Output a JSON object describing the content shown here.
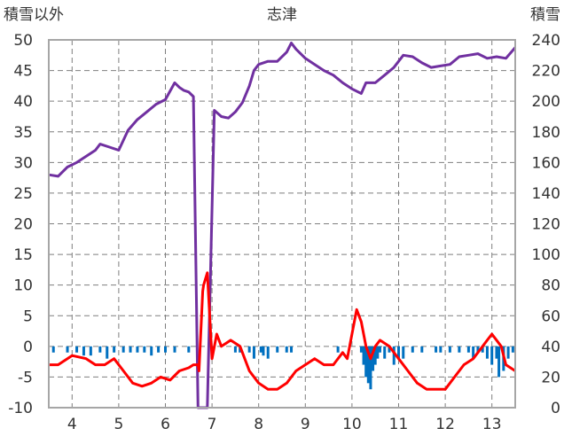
{
  "chart_data": {
    "type": "line",
    "title": "志津",
    "left_axis_label": "積雪以外",
    "right_axis_label": "積雪",
    "left_ylim": [
      -10,
      50
    ],
    "left_ticks": [
      "50",
      "45",
      "40",
      "35",
      "30",
      "25",
      "20",
      "15",
      "10",
      "5",
      "0",
      "-5",
      "-10"
    ],
    "right_ylim": [
      0,
      240
    ],
    "right_ticks": [
      "240",
      "220",
      "200",
      "180",
      "160",
      "140",
      "120",
      "100",
      "80",
      "60",
      "40",
      "20",
      "0"
    ],
    "x_ticks": [
      "4",
      "5",
      "6",
      "7",
      "8",
      "9",
      "10",
      "11",
      "12",
      "13"
    ],
    "xlim": [
      3.5,
      13.5
    ],
    "grid": true,
    "colors": {
      "snow_depth": "#7030a0",
      "temperature": "#ff0000",
      "bars": "#0070c0"
    },
    "series": [
      {
        "role": "snow_depth",
        "axis": "right",
        "x": [
          3.5,
          3.7,
          3.9,
          4.1,
          4.3,
          4.5,
          4.6,
          4.8,
          5.0,
          5.2,
          5.4,
          5.6,
          5.8,
          6.0,
          6.2,
          6.3,
          6.4,
          6.5,
          6.6,
          6.7,
          6.72,
          6.85,
          6.9,
          7.05,
          7.2,
          7.35,
          7.5,
          7.65,
          7.8,
          7.9,
          8.0,
          8.2,
          8.4,
          8.6,
          8.7,
          8.8,
          9.0,
          9.2,
          9.4,
          9.6,
          9.8,
          10.0,
          10.2,
          10.3,
          10.5,
          10.7,
          10.9,
          11.0,
          11.1,
          11.3,
          11.5,
          11.7,
          11.9,
          12.1,
          12.3,
          12.5,
          12.7,
          12.9,
          13.1,
          13.3,
          13.5
        ],
        "y": [
          152,
          151,
          157,
          160,
          164,
          168,
          172,
          170,
          168,
          181,
          188,
          193,
          198,
          201,
          212,
          209,
          207,
          206,
          203,
          0,
          0,
          0,
          0,
          194,
          190,
          189,
          193,
          199,
          210,
          220,
          224,
          226,
          226,
          232,
          238,
          234,
          228,
          224,
          220,
          217,
          212,
          208,
          205,
          212,
          212,
          217,
          222,
          226,
          230,
          229,
          225,
          222,
          223,
          224,
          229,
          230,
          231,
          228,
          229,
          228,
          235
        ]
      },
      {
        "role": "temperature",
        "axis": "left",
        "x": [
          3.5,
          3.7,
          3.9,
          4.0,
          4.3,
          4.5,
          4.7,
          4.9,
          5.1,
          5.3,
          5.5,
          5.7,
          5.9,
          6.1,
          6.3,
          6.5,
          6.6,
          6.7,
          6.72,
          6.8,
          6.82,
          6.9,
          7.0,
          7.1,
          7.2,
          7.4,
          7.6,
          7.8,
          8.0,
          8.2,
          8.4,
          8.6,
          8.8,
          9.0,
          9.2,
          9.4,
          9.6,
          9.8,
          9.9,
          10.0,
          10.1,
          10.2,
          10.3,
          10.4,
          10.5,
          10.6,
          10.8,
          11.0,
          11.2,
          11.4,
          11.6,
          11.8,
          12.0,
          12.2,
          12.4,
          12.6,
          12.8,
          12.9,
          13.0,
          13.1,
          13.2,
          13.3,
          13.5
        ],
        "y": [
          -3,
          -3,
          -2,
          -1.5,
          -2,
          -3,
          -3,
          -2,
          -4,
          -6,
          -6.5,
          -6,
          -5,
          -5.5,
          -4,
          -3.5,
          -3,
          -3,
          -4,
          9,
          10,
          12,
          -2,
          2,
          0,
          1,
          0,
          -4,
          -6,
          -7,
          -7,
          -6,
          -4,
          -3,
          -2,
          -3,
          -3,
          -1,
          -2,
          2,
          6,
          4,
          0,
          -2,
          0,
          1,
          0,
          -2,
          -4,
          -6,
          -7,
          -7,
          -7,
          -5,
          -3,
          -2,
          0,
          1,
          2,
          1,
          0,
          -3,
          -4
        ]
      }
    ],
    "bars": {
      "axis": "left",
      "x": [
        3.6,
        3.9,
        4.1,
        4.25,
        4.4,
        4.6,
        4.75,
        4.9,
        5.1,
        5.25,
        5.4,
        5.55,
        5.7,
        5.85,
        6.0,
        6.2,
        6.5,
        7.0,
        7.5,
        7.6,
        7.8,
        7.9,
        8.05,
        8.1,
        8.2,
        8.4,
        8.6,
        8.7,
        9.7,
        10.2,
        10.25,
        10.3,
        10.35,
        10.4,
        10.45,
        10.5,
        10.55,
        10.6,
        10.7,
        10.8,
        10.9,
        11.0,
        11.1,
        11.3,
        11.5,
        11.8,
        11.9,
        12.1,
        12.3,
        12.5,
        12.6,
        12.7,
        12.8,
        12.9,
        13.0,
        13.1,
        13.15,
        13.25,
        13.35,
        13.45
      ],
      "y": [
        -1,
        -1,
        -1,
        -1.5,
        -1.5,
        -1,
        -2,
        -1,
        -1,
        -1,
        -1,
        -1,
        -1.5,
        -1,
        -1,
        -1,
        -1,
        -1,
        -1,
        -1,
        -1,
        -2,
        -1,
        -1.5,
        -2,
        -1,
        -1,
        -1,
        -1,
        -1,
        -3,
        -5,
        -6,
        -7,
        -4,
        -3,
        -2,
        -1,
        -2,
        -1,
        -3,
        -2,
        -2,
        -1,
        -1,
        -1,
        -1,
        -1,
        -1,
        -1,
        -2,
        -1,
        -1,
        -2,
        -3,
        -2,
        -5,
        -4,
        -2,
        -1
      ]
    }
  }
}
